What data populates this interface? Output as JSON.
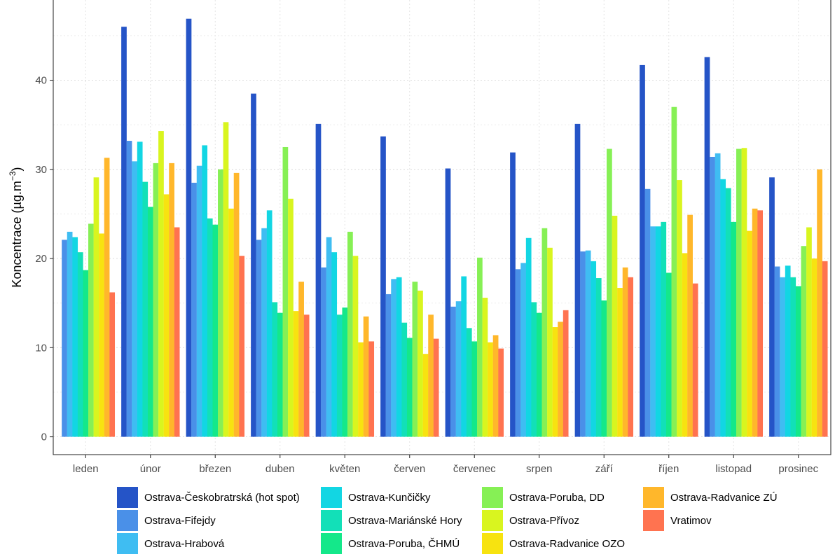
{
  "chart_data": {
    "type": "bar",
    "ylabel": "Koncentrace (µg.m",
    "ylabel_sup": "−3",
    "ylabel_close": ")",
    "ylim": [
      -2,
      49
    ],
    "yticks": [
      0,
      10,
      20,
      30,
      40
    ],
    "grid": true,
    "legend_position": "bottom",
    "categories": [
      "leden",
      "únor",
      "březen",
      "duben",
      "květen",
      "červen",
      "červenec",
      "srpen",
      "září",
      "říjen",
      "listopad",
      "prosinec"
    ],
    "series": [
      {
        "name": "Ostrava-Českobratrská (hot spot)",
        "color": "#2554C7",
        "values": [
          null,
          46.0,
          46.9,
          38.5,
          35.1,
          33.7,
          30.1,
          31.9,
          35.1,
          41.7,
          42.6,
          29.1
        ]
      },
      {
        "name": "Ostrava-Fifejdy",
        "color": "#4A90E8",
        "values": [
          22.1,
          33.2,
          28.5,
          22.1,
          19.0,
          16.0,
          14.6,
          18.8,
          20.8,
          27.8,
          31.4,
          19.1
        ]
      },
      {
        "name": "Ostrava-Hrabová",
        "color": "#3FBDF2",
        "values": [
          23.0,
          30.9,
          30.4,
          23.4,
          22.4,
          17.7,
          15.2,
          19.5,
          20.9,
          23.6,
          31.8,
          17.9
        ]
      },
      {
        "name": "Ostrava-Kunčičky",
        "color": "#12D6E3",
        "values": [
          22.4,
          33.1,
          32.7,
          25.4,
          20.7,
          17.9,
          18.0,
          22.3,
          19.7,
          23.6,
          28.9,
          19.2
        ]
      },
      {
        "name": "Ostrava-Mariánské Hory",
        "color": "#12E0B8",
        "values": [
          20.7,
          28.6,
          24.5,
          15.1,
          13.7,
          12.8,
          12.2,
          15.1,
          17.8,
          24.1,
          27.9,
          17.9
        ]
      },
      {
        "name": "Ostrava-Poruba, ČHMÚ",
        "color": "#14E88A",
        "values": [
          18.7,
          25.8,
          23.8,
          13.9,
          14.5,
          11.1,
          10.7,
          13.9,
          15.3,
          18.4,
          24.1,
          16.9
        ]
      },
      {
        "name": "Ostrava-Poruba, DD",
        "color": "#86F055",
        "values": [
          23.9,
          30.7,
          30.0,
          32.5,
          23.0,
          17.4,
          20.1,
          23.4,
          32.3,
          37.0,
          32.3,
          21.4
        ]
      },
      {
        "name": "Ostrava-Přívoz",
        "color": "#D9F51F",
        "values": [
          29.1,
          34.3,
          35.3,
          26.7,
          20.3,
          16.4,
          15.6,
          21.2,
          24.8,
          28.8,
          32.4,
          23.5
        ]
      },
      {
        "name": "Ostrava-Radvanice OZO",
        "color": "#F7E310",
        "values": [
          22.8,
          27.2,
          25.6,
          14.1,
          10.6,
          9.3,
          10.6,
          12.3,
          16.7,
          20.6,
          23.1,
          20.0
        ]
      },
      {
        "name": "Ostrava-Radvanice ZÚ",
        "color": "#FFB72B",
        "values": [
          31.3,
          30.7,
          29.6,
          17.4,
          13.5,
          13.7,
          11.4,
          12.9,
          19.0,
          24.9,
          25.6,
          30.0
        ]
      },
      {
        "name": "Vratimov",
        "color": "#FF7350",
        "values": [
          16.2,
          23.5,
          20.3,
          13.7,
          10.7,
          11.0,
          9.9,
          14.2,
          17.9,
          17.2,
          25.4,
          19.7
        ]
      }
    ]
  }
}
